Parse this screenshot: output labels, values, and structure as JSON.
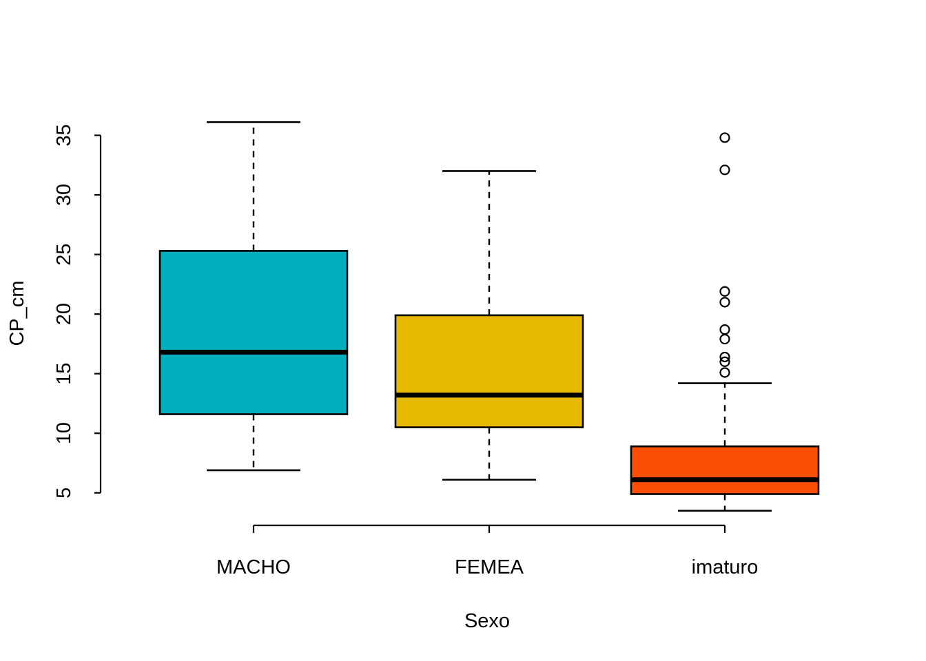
{
  "chart_data": {
    "type": "boxplot",
    "title": "",
    "xlabel": "Sexo",
    "ylabel": "CP_cm",
    "categories": [
      "MACHO",
      "FEMEA",
      "imaturo"
    ],
    "y_ticks": [
      5,
      10,
      15,
      20,
      25,
      30,
      35
    ],
    "ylim": [
      3.5,
      36.1
    ],
    "grid": "off",
    "legend": "none",
    "background_color": "#FFFFFF",
    "axis_color": "#000000",
    "series": [
      {
        "name": "MACHO",
        "color": "#00AFBB",
        "whisker_low": 6.9,
        "q1": 11.6,
        "median": 16.8,
        "q3": 25.3,
        "whisker_high": 36.1,
        "outliers": []
      },
      {
        "name": "FEMEA",
        "color": "#E7B800",
        "whisker_low": 6.1,
        "q1": 10.5,
        "median": 13.2,
        "q3": 19.9,
        "whisker_high": 32.0,
        "outliers": []
      },
      {
        "name": "imaturo",
        "color": "#FC4E07",
        "whisker_low": 3.5,
        "q1": 4.9,
        "median": 6.1,
        "q3": 8.9,
        "whisker_high": 14.2,
        "outliers": [
          34.8,
          32.1,
          21.9,
          21.0,
          18.7,
          17.9,
          16.4,
          16.0,
          15.1
        ]
      }
    ]
  }
}
